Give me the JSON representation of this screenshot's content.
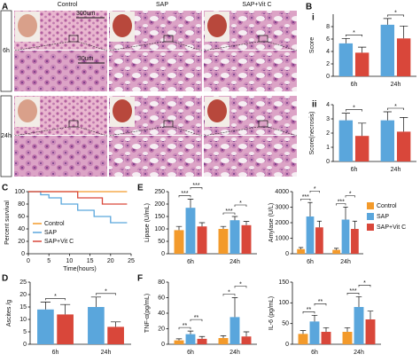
{
  "panel_a": {
    "label": "A",
    "columns": [
      "Control",
      "SAP",
      "SAP+Vit C"
    ],
    "rows": [
      "6h",
      "24h"
    ],
    "scale_bars": [
      "300um",
      "30um"
    ]
  },
  "chart_data": [
    {
      "type": "bar",
      "panel_label": "B",
      "sub_label": "i",
      "ylabel": "Score",
      "categories": [
        "6h",
        "24h"
      ],
      "ylim": [
        0,
        10
      ],
      "yticks": [
        0,
        2,
        4,
        6,
        8
      ],
      "series": [
        {
          "color": "#5aa6dc",
          "values": [
            5.3,
            8.3
          ],
          "errors": [
            0.8,
            1.0
          ]
        },
        {
          "color": "#d9473a",
          "values": [
            3.8,
            6.1
          ],
          "errors": [
            0.9,
            2.0
          ]
        }
      ],
      "significance": [
        [
          "*"
        ],
        [
          "*"
        ]
      ]
    },
    {
      "type": "bar",
      "sub_label": "ii",
      "ylabel": "Score(necrosis)",
      "categories": [
        "6h",
        "24h"
      ],
      "ylim": [
        0,
        4
      ],
      "yticks": [
        0,
        1,
        2,
        3,
        4
      ],
      "series": [
        {
          "color": "#5aa6dc",
          "values": [
            2.9,
            2.9
          ],
          "errors": [
            0.5,
            0.6
          ]
        },
        {
          "color": "#d9473a",
          "values": [
            1.8,
            2.1
          ],
          "errors": [
            0.9,
            1.0
          ]
        }
      ],
      "significance": [
        [
          "*"
        ],
        [
          "*"
        ]
      ]
    },
    {
      "type": "line",
      "panel_label": "C",
      "ylabel": "Percent survival",
      "xlabel": "Time(hours)",
      "xlim": [
        0,
        25
      ],
      "xticks": [
        0,
        5,
        10,
        15,
        20,
        25
      ],
      "ylim": [
        0,
        100
      ],
      "yticks": [
        0,
        20,
        40,
        60,
        80,
        100
      ],
      "legend": "lower left",
      "series": [
        {
          "name": "Control",
          "color": "#f39a2b",
          "x": [
            0,
            24
          ],
          "values": [
            100,
            100
          ]
        },
        {
          "name": "SAP",
          "color": "#5aa6dc",
          "x": [
            0,
            3,
            3,
            5,
            5,
            8,
            8,
            12,
            12,
            16,
            16,
            20,
            20,
            24
          ],
          "values": [
            100,
            100,
            95,
            95,
            90,
            90,
            80,
            80,
            70,
            70,
            60,
            60,
            50,
            50
          ]
        },
        {
          "name": "SAP+Vit C",
          "color": "#d9473a",
          "x": [
            0,
            12,
            12,
            18,
            18,
            24
          ],
          "values": [
            100,
            100,
            90,
            90,
            80,
            80
          ]
        }
      ]
    },
    {
      "type": "bar",
      "panel_label": "D",
      "ylabel": "Ascites /g",
      "categories": [
        "6h",
        "24h"
      ],
      "ylim": [
        0,
        25
      ],
      "yticks": [
        0,
        5,
        10,
        15,
        20,
        25
      ],
      "series": [
        {
          "color": "#5aa6dc",
          "values": [
            14,
            15
          ],
          "errors": [
            3,
            4
          ]
        },
        {
          "color": "#d9473a",
          "values": [
            12,
            7
          ],
          "errors": [
            4,
            2
          ]
        }
      ],
      "significance": [
        [
          "*"
        ],
        [
          "*"
        ]
      ]
    },
    {
      "type": "bar",
      "panel_label": "E",
      "ylabel": "Lipase (U/mL)",
      "categories": [
        "6h",
        "24h"
      ],
      "ylim": [
        0,
        250
      ],
      "yticks": [
        0,
        50,
        100,
        150,
        200,
        250
      ],
      "legend": "right",
      "series": [
        {
          "name": "Control",
          "color": "#f39a2b",
          "values": [
            95,
            100
          ],
          "errors": [
            15,
            10
          ]
        },
        {
          "name": "SAP",
          "color": "#5aa6dc",
          "values": [
            185,
            135
          ],
          "errors": [
            35,
            15
          ]
        },
        {
          "name": "SAP+Vit C",
          "color": "#d9473a",
          "values": [
            110,
            115
          ],
          "errors": [
            15,
            15
          ]
        }
      ],
      "significance": [
        [
          "***",
          "***"
        ],
        [
          "***",
          "*"
        ]
      ]
    },
    {
      "type": "bar",
      "ylabel": "Amylase (U/L)",
      "categories": [
        "6h",
        "24h"
      ],
      "ylim": [
        0,
        4000
      ],
      "yticks": [
        0,
        1000,
        2000,
        3000,
        4000
      ],
      "series": [
        {
          "color": "#f39a2b",
          "values": [
            300,
            250
          ],
          "errors": [
            100,
            100
          ]
        },
        {
          "color": "#5aa6dc",
          "values": [
            2400,
            2200
          ],
          "errors": [
            900,
            800
          ]
        },
        {
          "color": "#d9473a",
          "values": [
            1700,
            1600
          ],
          "errors": [
            400,
            500
          ]
        }
      ],
      "significance": [
        [
          "***",
          "*"
        ],
        [
          "***",
          "*"
        ]
      ]
    },
    {
      "type": "bar",
      "panel_label": "F",
      "ylabel": "TNF-α(pg/mL)",
      "categories": [
        "6h",
        "24h"
      ],
      "ylim": [
        0,
        80
      ],
      "yticks": [
        0,
        20,
        40,
        60,
        80
      ],
      "series": [
        {
          "color": "#f39a2b",
          "values": [
            5,
            8
          ],
          "errors": [
            2,
            3
          ]
        },
        {
          "color": "#5aa6dc",
          "values": [
            13,
            35
          ],
          "errors": [
            4,
            25
          ]
        },
        {
          "color": "#d9473a",
          "values": [
            7,
            10
          ],
          "errors": [
            3,
            6
          ]
        }
      ],
      "significance": [
        [
          "**",
          "**"
        ],
        [
          "*",
          "*"
        ]
      ]
    },
    {
      "type": "bar",
      "ylabel": "IL-6 (pg/mL)",
      "categories": [
        "6h",
        "24h"
      ],
      "ylim": [
        0,
        150
      ],
      "yticks": [
        0,
        50,
        100,
        150
      ],
      "series": [
        {
          "color": "#f39a2b",
          "values": [
            25,
            30
          ],
          "errors": [
            8,
            10
          ]
        },
        {
          "color": "#5aa6dc",
          "values": [
            55,
            90
          ],
          "errors": [
            15,
            25
          ]
        },
        {
          "color": "#d9473a",
          "values": [
            30,
            60
          ],
          "errors": [
            10,
            20
          ]
        }
      ],
      "significance": [
        [
          "**",
          "**"
        ],
        [
          "***",
          "*"
        ]
      ]
    }
  ]
}
